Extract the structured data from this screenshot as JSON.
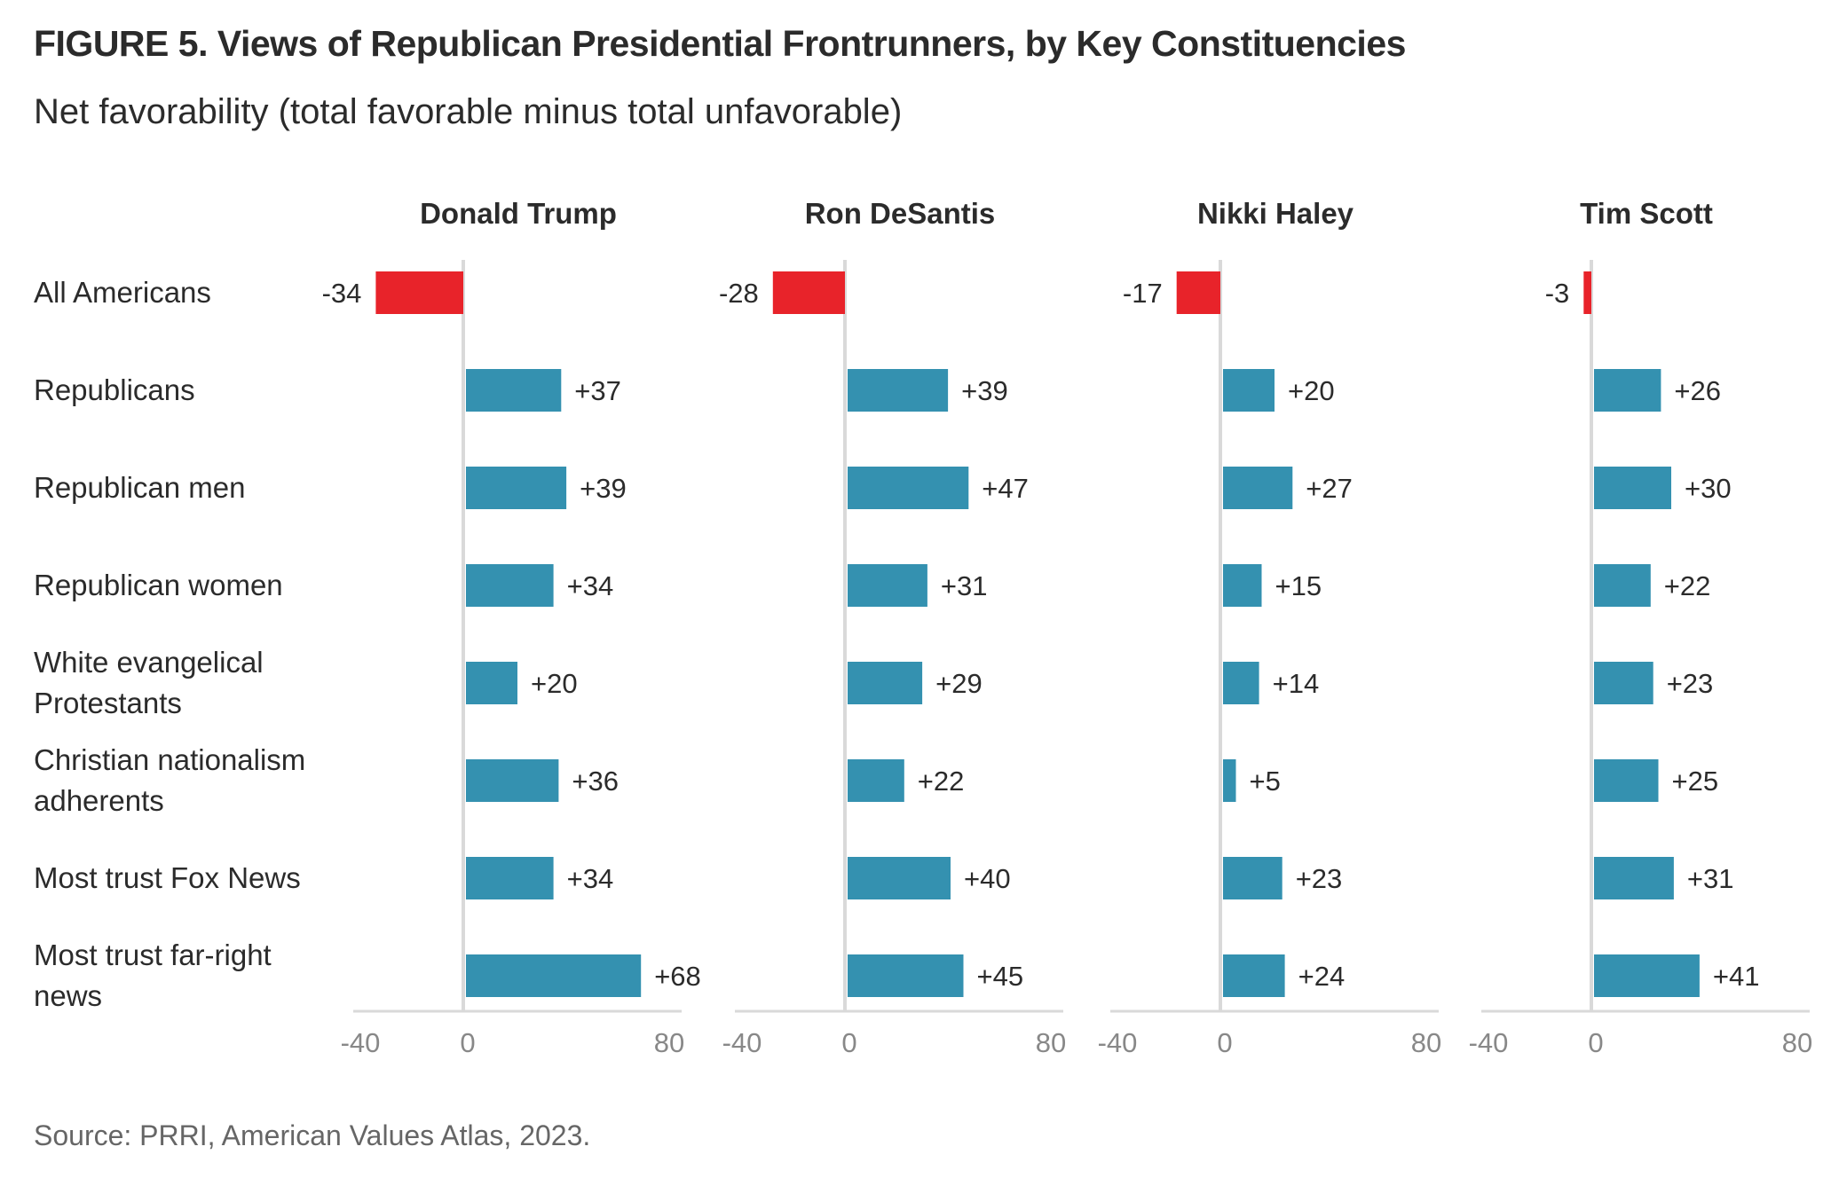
{
  "header": {
    "title": "FIGURE 5.  Views of Republican Presidential Frontrunners, by Key Constituencies",
    "subtitle": "Net favorability (total favorable minus total unfavorable)"
  },
  "footer": {
    "source": "Source: PRRI, American Values Atlas, 2023."
  },
  "colors": {
    "positive": "#3491b0",
    "negative": "#e8232a",
    "axis": "#d9d9d9"
  },
  "chart_data": {
    "type": "bar",
    "orientation": "horizontal",
    "title": "FIGURE 5.  Views of Republican Presidential Frontrunners, by Key Constituencies",
    "subtitle": "Net favorability (total favorable minus total unfavorable)",
    "categories": [
      "All Americans",
      "Republicans",
      "Republican men",
      "Republican women",
      "White evangelical Protestants",
      "Christian nationalism adherents",
      "Most trust Fox News",
      "Most trust far-right news"
    ],
    "category_lines": [
      [
        "All Americans"
      ],
      [
        "Republicans"
      ],
      [
        "Republican men"
      ],
      [
        "Republican women"
      ],
      [
        "White evangelical",
        "Protestants"
      ],
      [
        "Christian nationalism",
        "adherents"
      ],
      [
        "Most trust Fox News"
      ],
      [
        "Most trust far-right",
        "news"
      ]
    ],
    "xlim": [
      -40,
      80
    ],
    "ticks": [
      -40,
      0,
      80
    ],
    "tick_labels": [
      "-40",
      "0",
      "80"
    ],
    "grid": false,
    "series": [
      {
        "name": "Donald Trump",
        "values": [
          -34,
          37,
          39,
          34,
          20,
          36,
          34,
          68
        ],
        "labels": [
          "-34",
          "+37",
          "+39",
          "+34",
          "+20",
          "+36",
          "+34",
          "+68"
        ]
      },
      {
        "name": "Ron DeSantis",
        "values": [
          -28,
          39,
          47,
          31,
          29,
          22,
          40,
          45
        ],
        "labels": [
          "-28",
          "+39",
          "+47",
          "+31",
          "+29",
          "+22",
          "+40",
          "+45"
        ]
      },
      {
        "name": "Nikki Haley",
        "values": [
          -17,
          20,
          27,
          15,
          14,
          5,
          23,
          24
        ],
        "labels": [
          "-17",
          "+20",
          "+27",
          "+15",
          "+14",
          "+5",
          "+23",
          "+24"
        ]
      },
      {
        "name": "Tim Scott",
        "values": [
          -3,
          26,
          30,
          22,
          23,
          25,
          31,
          41
        ],
        "labels": [
          "-3",
          "+26",
          "+30",
          "+22",
          "+23",
          "+25",
          "+31",
          "+41"
        ]
      }
    ]
  }
}
